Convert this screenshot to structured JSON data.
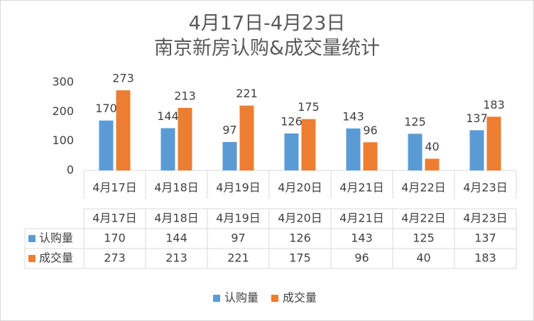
{
  "chart_data": {
    "type": "bar",
    "title": "4月17日-4月23日",
    "subtitle": "南京新房认购&成交量统计",
    "categories": [
      "4月17日",
      "4月18日",
      "4月19日",
      "4月20日",
      "4月21日",
      "4月22日",
      "4月23日"
    ],
    "series": [
      {
        "name": "认购量",
        "color": "#5b9bd5",
        "values": [
          170,
          144,
          97,
          126,
          143,
          125,
          137
        ]
      },
      {
        "name": "成交量",
        "color": "#ed7d31",
        "values": [
          273,
          213,
          221,
          175,
          96,
          40,
          183
        ]
      }
    ],
    "ylim": [
      0,
      300
    ],
    "yticks": [
      0,
      100,
      200,
      300
    ],
    "grid": false,
    "data_table": true,
    "legend": "bottom"
  }
}
